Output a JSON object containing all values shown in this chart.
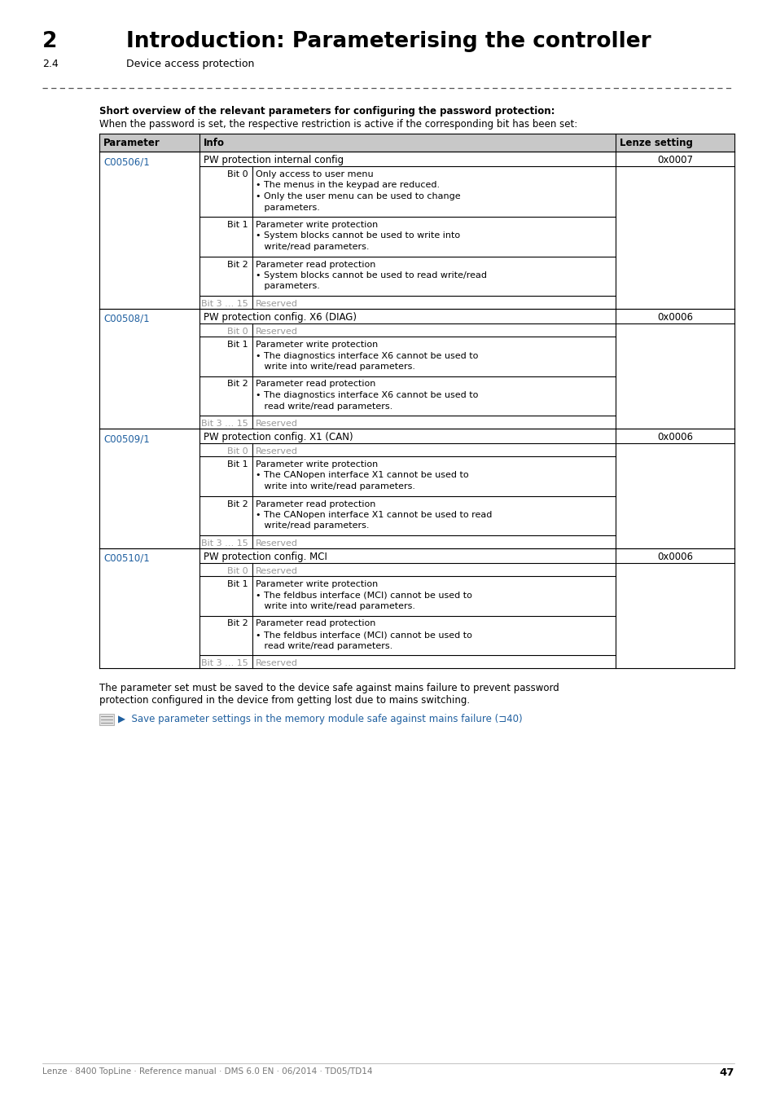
{
  "title_number": "2",
  "title_text": "Introduction: Parameterising the controller",
  "subtitle_num": "2.4",
  "subtitle_text": "Device access protection",
  "section_bold": "Short overview of the relevant parameters for configuring the password protection:",
  "section_intro": "When the password is set, the respective restriction is active if the corresponding bit has been set:",
  "table_headers": [
    "Parameter",
    "Info",
    "Lenze setting"
  ],
  "rows": [
    {
      "param": "C00506/1",
      "main_info": "PW protection internal config",
      "lenze": "0x0007",
      "sub_rows": [
        {
          "bit": "Bit 0",
          "desc": [
            "Only access to user menu",
            "• The menus in the keypad are reduced.",
            "• Only the user menu can be used to change",
            "   parameters."
          ],
          "gray": false
        },
        {
          "bit": "Bit 1",
          "desc": [
            "Parameter write protection",
            "• System blocks cannot be used to write into",
            "   write/read parameters."
          ],
          "gray": false
        },
        {
          "bit": "Bit 2",
          "desc": [
            "Parameter read protection",
            "• System blocks cannot be used to read write/read",
            "   parameters."
          ],
          "gray": false
        },
        {
          "bit": "Bit 3 … 15",
          "desc": [
            "Reserved"
          ],
          "gray": true
        }
      ]
    },
    {
      "param": "C00508/1",
      "main_info": "PW protection config. X6 (DIAG)",
      "lenze": "0x0006",
      "sub_rows": [
        {
          "bit": "Bit 0",
          "desc": [
            "Reserved"
          ],
          "gray": true
        },
        {
          "bit": "Bit 1",
          "desc": [
            "Parameter write protection",
            "• The diagnostics interface X6 cannot be used to",
            "   write into write/read parameters."
          ],
          "gray": false
        },
        {
          "bit": "Bit 2",
          "desc": [
            "Parameter read protection",
            "• The diagnostics interface X6 cannot be used to",
            "   read write/read parameters."
          ],
          "gray": false
        },
        {
          "bit": "Bit 3 … 15",
          "desc": [
            "Reserved"
          ],
          "gray": true
        }
      ]
    },
    {
      "param": "C00509/1",
      "main_info": "PW protection config. X1 (CAN)",
      "lenze": "0x0006",
      "sub_rows": [
        {
          "bit": "Bit 0",
          "desc": [
            "Reserved"
          ],
          "gray": true
        },
        {
          "bit": "Bit 1",
          "desc": [
            "Parameter write protection",
            "• The CANopen interface X1 cannot be used to",
            "   write into write/read parameters."
          ],
          "gray": false
        },
        {
          "bit": "Bit 2",
          "desc": [
            "Parameter read protection",
            "• The CANopen interface X1 cannot be used to read",
            "   write/read parameters."
          ],
          "gray": false
        },
        {
          "bit": "Bit 3 … 15",
          "desc": [
            "Reserved"
          ],
          "gray": true
        }
      ]
    },
    {
      "param": "C00510/1",
      "main_info": "PW protection config. MCI",
      "lenze": "0x0006",
      "sub_rows": [
        {
          "bit": "Bit 0",
          "desc": [
            "Reserved"
          ],
          "gray": true
        },
        {
          "bit": "Bit 1",
          "desc": [
            "Parameter write protection",
            "• The feldbus interface (MCI) cannot be used to",
            "   write into write/read parameters."
          ],
          "gray": false
        },
        {
          "bit": "Bit 2",
          "desc": [
            "Parameter read protection",
            "• The feldbus interface (MCI) cannot be used to",
            "   read write/read parameters."
          ],
          "gray": false
        },
        {
          "bit": "Bit 3 … 15",
          "desc": [
            "Reserved"
          ],
          "gray": true
        }
      ]
    }
  ],
  "footer_para": "The parameter set must be saved to the device safe against mains failure to prevent password\nprotection configured in the device from getting lost due to mains switching.",
  "link_arrow": "▶",
  "link_text": "Save parameter settings in the memory module safe against mains failure (⊐40)",
  "page_footer": "Lenze · 8400 TopLine · Reference manual · DMS 6.0 EN · 06/2014 · TD05/TD14",
  "page_number": "47",
  "bg_color": "#ffffff",
  "header_bg": "#c8c8c8",
  "link_color": "#2060a0",
  "gray_color": "#999999",
  "black": "#000000",
  "line_color": "#555555"
}
